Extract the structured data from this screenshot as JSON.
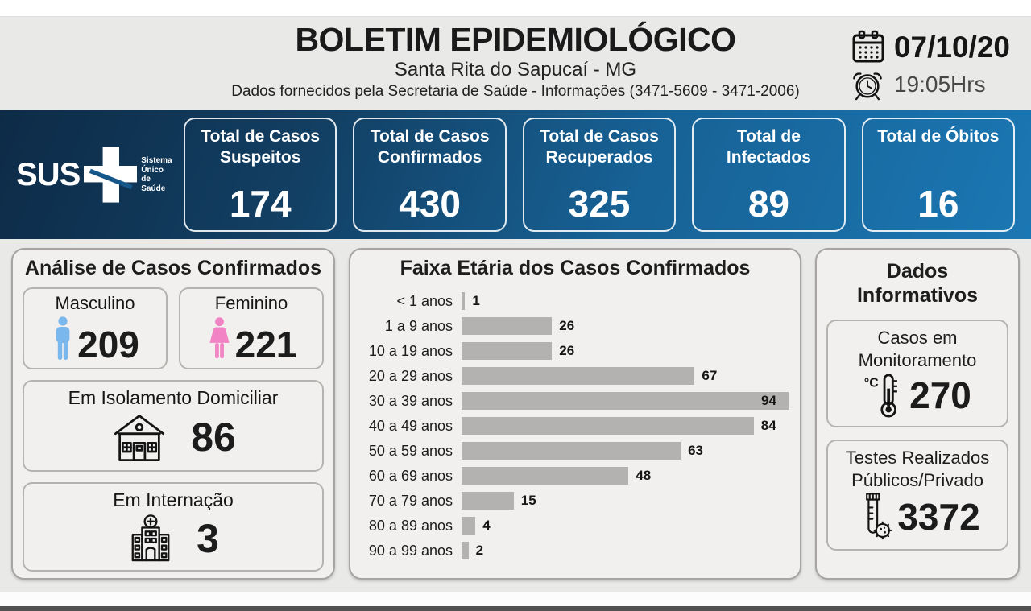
{
  "header": {
    "title": "BOLETIM EPIDEMIOLÓGICO",
    "subtitle": "Santa Rita do Sapucaí - MG",
    "info_line": "Dados fornecidos pela Secretaria de Saúde - Informações (3471-5609 - 3471-2006)",
    "date": "07/10/20",
    "time": "19:05Hrs"
  },
  "banner": {
    "logo": {
      "text": "SUS",
      "tagline": "Sistema Único de Saúde"
    },
    "stats": [
      {
        "label": "Total de Casos Suspeitos",
        "value": "174"
      },
      {
        "label": "Total de Casos Confirmados",
        "value": "430"
      },
      {
        "label": "Total de Casos Recuperados",
        "value": "325"
      },
      {
        "label": "Total de Infectados",
        "value": "89"
      },
      {
        "label": "Total de Óbitos",
        "value": "16"
      }
    ]
  },
  "analysis": {
    "title": "Análise de Casos Confirmados",
    "male": {
      "label": "Masculino",
      "value": "209"
    },
    "female": {
      "label": "Feminino",
      "value": "221"
    },
    "isolation": {
      "label": "Em Isolamento Domiciliar",
      "value": "86"
    },
    "hospitalized": {
      "label": "Em Internação",
      "value": "3"
    }
  },
  "chart_data": {
    "type": "bar",
    "orientation": "horizontal",
    "title": "Faixa Etária dos Casos Confirmados",
    "categories": [
      "< 1 anos",
      "1 a 9 anos",
      "10 a 19 anos",
      "20 a 29 anos",
      "30 a 39 anos",
      "40 a 49 anos",
      "50 a 59 anos",
      "60 a 69 anos",
      "70 a 79 anos",
      "80 a 89 anos",
      "90 a 99 anos"
    ],
    "values": [
      1,
      26,
      26,
      67,
      94,
      84,
      63,
      48,
      15,
      4,
      2
    ],
    "xlim": [
      0,
      94
    ],
    "bar_color": "#b3b2b0",
    "grid": false,
    "legend": false
  },
  "informative": {
    "title": "Dados Informativos",
    "monitoring": {
      "label": "Casos em Monitoramento",
      "value": "270"
    },
    "tests": {
      "label": "Testes Realizados Públicos/Privado",
      "value": "3372"
    }
  },
  "colors": {
    "banner_dark": "#0d2b47",
    "banner_light": "#1b77b3",
    "male_icon": "#7ab7ec",
    "female_icon": "#f283c5",
    "bar": "#b3b2b0",
    "icon_ink": "#141414"
  }
}
